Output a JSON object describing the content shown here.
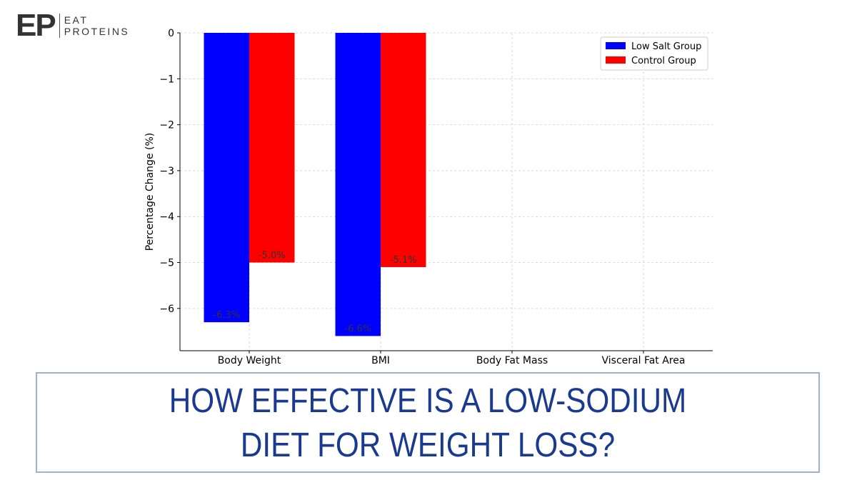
{
  "logo": {
    "mark": "EP",
    "line1": "EAT",
    "line2": "PROTEINS"
  },
  "banner": {
    "line1": "HOW EFFECTIVE IS A LOW-SODIUM",
    "line2": "DIET FOR WEIGHT LOSS?"
  },
  "chart_data": {
    "type": "bar",
    "title": "",
    "xlabel": "",
    "ylabel": "Percentage Change (%)",
    "categories": [
      "Body Weight",
      "BMI",
      "Body Fat Mass",
      "Visceral Fat Area"
    ],
    "ylim": [
      -6.92,
      0
    ],
    "yticks": [
      0,
      -1,
      -2,
      -3,
      -4,
      -5,
      -6
    ],
    "ytick_labels": [
      "0",
      "−1",
      "−2",
      "−3",
      "−4",
      "−5",
      "−6"
    ],
    "grid": true,
    "legend": "top-right",
    "series": [
      {
        "name": "Low Salt Group",
        "color": "#0000ff",
        "values": [
          -6.3,
          -6.6,
          null,
          null
        ],
        "labels": [
          "-6.3%",
          "-6.6%",
          "",
          ""
        ]
      },
      {
        "name": "Control Group",
        "color": "#ff0000",
        "values": [
          -5.0,
          -5.1,
          null,
          null
        ],
        "labels": [
          "-5.0%",
          "-5.1%",
          "",
          ""
        ]
      }
    ]
  }
}
